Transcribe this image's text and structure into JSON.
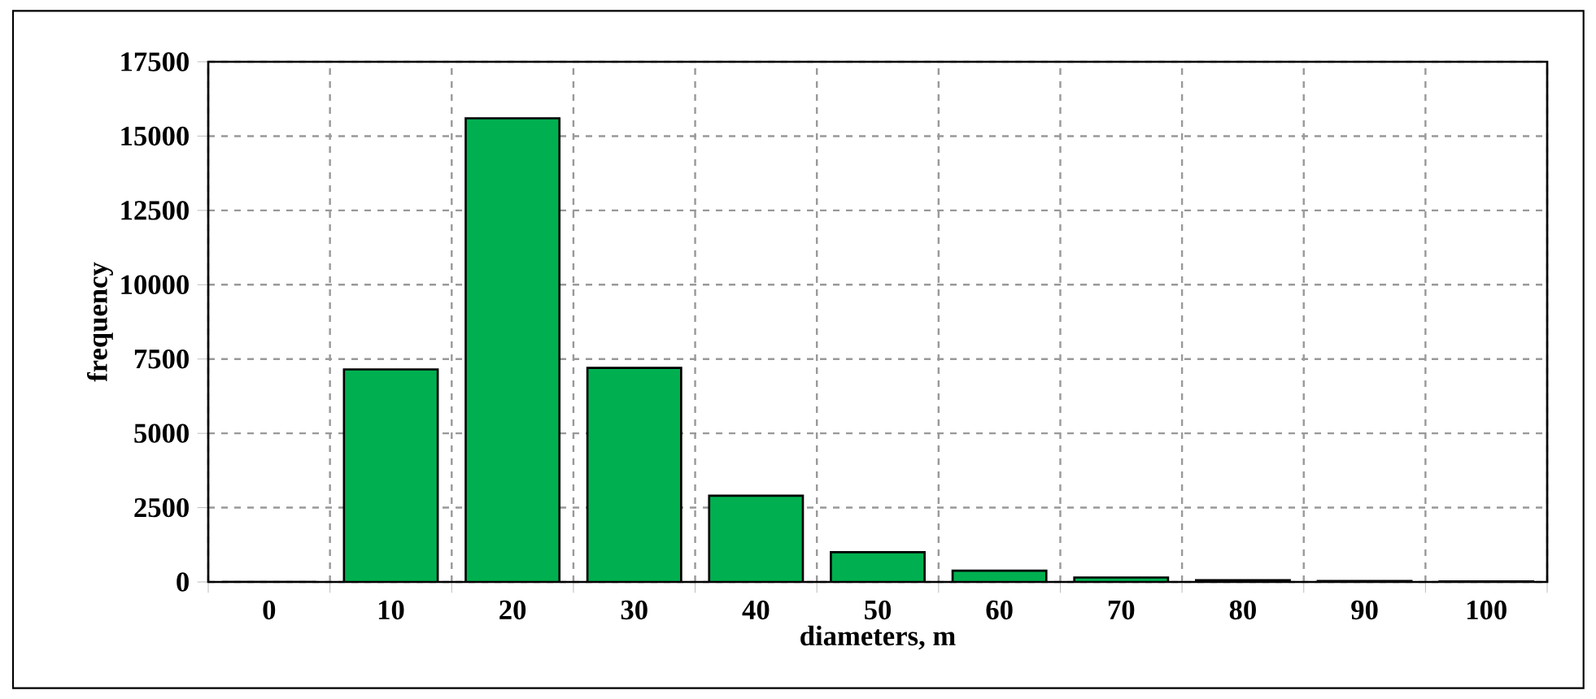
{
  "chart_data": {
    "type": "bar",
    "xlabel": "diameters, m",
    "ylabel": "frequency",
    "categories": [
      "0",
      "10",
      "20",
      "30",
      "40",
      "50",
      "60",
      "70",
      "80",
      "90",
      "100"
    ],
    "values": [
      0,
      7150,
      15600,
      7200,
      2900,
      1000,
      380,
      150,
      60,
      30,
      20
    ],
    "color": "#00b050",
    "ylim": [
      0,
      17500
    ],
    "yticks": [
      0,
      2500,
      5000,
      7500,
      10000,
      12500,
      15000,
      17500
    ],
    "grid": true
  }
}
